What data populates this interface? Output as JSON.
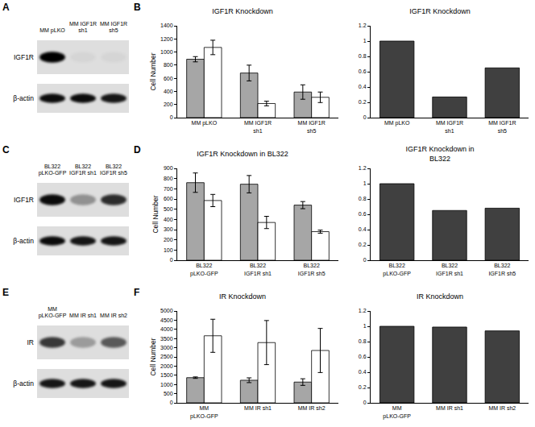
{
  "panel_labels": [
    "A",
    "B",
    "C",
    "D",
    "E",
    "F"
  ],
  "blots": [
    {
      "lanes": [
        "MM pLKO",
        "MM IGF1R sh1",
        "MM IGF1R sh5"
      ],
      "rows": [
        {
          "label": "IGF1R",
          "intensity": [
            1,
            0.04,
            0.04
          ]
        },
        {
          "label": "β-actin",
          "intensity": [
            0.95,
            0.95,
            0.9
          ]
        }
      ]
    },
    {
      "lanes": [
        "BL322 pLKO-GFP",
        "BL322 IGF1R sh1",
        "BL322 IGF1R sh5"
      ],
      "rows": [
        {
          "label": "IGF1R",
          "intensity": [
            0.95,
            0.35,
            0.8
          ]
        },
        {
          "label": "β-actin",
          "intensity": [
            0.95,
            0.9,
            0.9
          ]
        }
      ]
    },
    {
      "lanes": [
        "MM pLKO-GFP",
        "MM IR sh1",
        "MM IR sh2"
      ],
      "rows": [
        {
          "label": "IR",
          "intensity": [
            0.75,
            0.3,
            0.6
          ]
        },
        {
          "label": "β-actin",
          "intensity": [
            0.9,
            0.9,
            0.9
          ]
        }
      ]
    }
  ],
  "chart_data": [
    {
      "type": "bar",
      "title": "IGF1R Knockdown",
      "y_label": "Cell Number",
      "categories": [
        "MM pLKO",
        "MM IGF1R sh1",
        "MM IGF1R sh5"
      ],
      "series": [
        {
          "color": "#a6a6a6",
          "values": [
            890,
            680,
            390
          ],
          "error": [
            40,
            120,
            110
          ]
        },
        {
          "color": "#ffffff",
          "values": [
            1070,
            215,
            310
          ],
          "error": [
            110,
            35,
            80
          ]
        }
      ],
      "ylim": [
        0,
        1400
      ],
      "yticks": [
        0,
        200,
        400,
        600,
        800,
        1000,
        1200,
        1400
      ],
      "grid": false
    },
    {
      "type": "bar",
      "title": "IGF1R Knockdown",
      "categories": [
        "MM pLKO",
        "MM IGF1R sh1",
        "MM IGF1R sh5"
      ],
      "values": [
        1,
        0.27,
        0.65
      ],
      "color": "#404040",
      "ylim": [
        0,
        1.2
      ],
      "yticks": [
        0,
        0.2,
        0.4,
        0.6,
        0.8,
        1,
        1.2
      ],
      "grid": false
    },
    {
      "type": "bar",
      "title": "IGF1R Knockdown in BL322",
      "y_label": "Cell Number",
      "categories": [
        "BL322 pLKO-GFP",
        "BL322 IGF1R sh1",
        "BL322 IGF1R sh5"
      ],
      "series": [
        {
          "color": "#a6a6a6",
          "values": [
            760,
            745,
            540
          ],
          "error": [
            95,
            85,
            35
          ]
        },
        {
          "color": "#ffffff",
          "values": [
            585,
            370,
            280
          ],
          "error": [
            60,
            60,
            15
          ]
        }
      ],
      "ylim": [
        0,
        900
      ],
      "yticks": [
        0,
        100,
        200,
        300,
        400,
        500,
        600,
        700,
        800,
        900
      ],
      "grid": false
    },
    {
      "type": "bar",
      "title": "IGF1R Knockdown in BL322",
      "categories": [
        "BL322 pLKO-GFP",
        "BL322 IGF1R sh1",
        "BL322 IGF1R sh5"
      ],
      "values": [
        1,
        0.65,
        0.68
      ],
      "color": "#404040",
      "ylim": [
        0,
        1.2
      ],
      "yticks": [
        0,
        0.2,
        0.4,
        0.6,
        0.8,
        1,
        1.2
      ],
      "grid": false
    },
    {
      "type": "bar",
      "title": "IR Knockdown",
      "y_label": "Cell Number",
      "categories": [
        "MM pLKO-GFP",
        "MM IR sh1",
        "MM IR sh2"
      ],
      "series": [
        {
          "color": "#a6a6a6",
          "values": [
            1370,
            1230,
            1130
          ],
          "error": [
            40,
            130,
            180
          ]
        },
        {
          "color": "#ffffff",
          "values": [
            3650,
            3280,
            2850
          ],
          "error": [
            900,
            1200,
            1200
          ]
        }
      ],
      "ylim": [
        0,
        5000
      ],
      "yticks": [
        0,
        500,
        1000,
        1500,
        2000,
        2500,
        3000,
        3500,
        4000,
        4500,
        5000
      ],
      "grid": false
    },
    {
      "type": "bar",
      "title": "IR Knockdown",
      "categories": [
        "MM pLKO-GFP",
        "MM IR sh1",
        "MM IR sh2"
      ],
      "values": [
        1,
        0.99,
        0.94
      ],
      "color": "#404040",
      "ylim": [
        0,
        1.2
      ],
      "yticks": [
        0,
        0.2,
        0.4,
        0.6,
        0.8,
        1,
        1.2
      ],
      "grid": false
    }
  ]
}
